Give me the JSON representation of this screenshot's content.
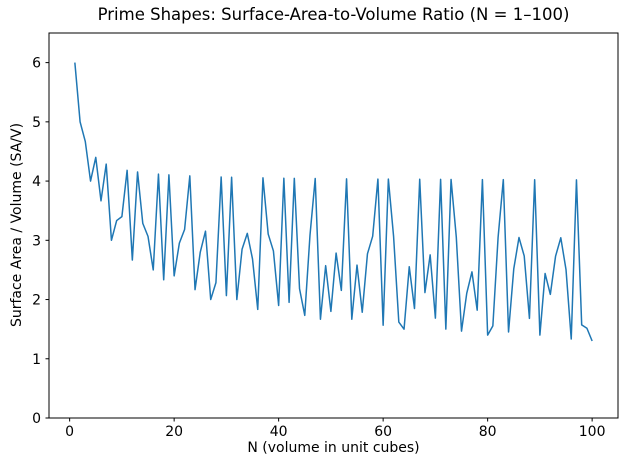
{
  "figure": {
    "background": "#ffffff",
    "text_color": "#000000",
    "spine_color": "#000000"
  },
  "chart_data": {
    "type": "line",
    "title": "Prime Shapes: Surface-Area-to-Volume Ratio (N = 1–100)",
    "xlabel": "N (volume in unit cubes)",
    "ylabel": "Surface Area / Volume (SA/V)",
    "line_color": "#1f77b4",
    "line_width": 1.5,
    "grid": false,
    "legend": "none",
    "xlim": [
      -3.95,
      104.95
    ],
    "ylim": [
      0,
      6.5
    ],
    "xticks": [
      0,
      20,
      40,
      60,
      80,
      100
    ],
    "yticks": [
      0,
      1,
      2,
      3,
      4,
      5,
      6
    ],
    "x": [
      1,
      2,
      3,
      4,
      5,
      6,
      7,
      8,
      9,
      10,
      11,
      12,
      13,
      14,
      15,
      16,
      17,
      18,
      19,
      20,
      21,
      22,
      23,
      24,
      25,
      26,
      27,
      28,
      29,
      30,
      31,
      32,
      33,
      34,
      35,
      36,
      37,
      38,
      39,
      40,
      41,
      42,
      43,
      44,
      45,
      46,
      47,
      48,
      49,
      50,
      51,
      52,
      53,
      54,
      55,
      56,
      57,
      58,
      59,
      60,
      61,
      62,
      63,
      64,
      65,
      66,
      67,
      68,
      69,
      70,
      71,
      72,
      73,
      74,
      75,
      76,
      77,
      78,
      79,
      80,
      81,
      82,
      83,
      84,
      85,
      86,
      87,
      88,
      89,
      90,
      91,
      92,
      93,
      94,
      95,
      96,
      97,
      98,
      99,
      100
    ],
    "y": [
      6.0,
      5.0,
      4.6667,
      4.0,
      4.4,
      3.6667,
      4.2857,
      3.0,
      3.3333,
      3.4,
      4.1818,
      2.6667,
      4.1538,
      3.2857,
      3.0667,
      2.5,
      4.1176,
      2.3333,
      4.1053,
      2.4,
      2.9524,
      3.1818,
      4.087,
      2.1667,
      2.8,
      3.1538,
      2.0,
      2.2857,
      4.069,
      2.0667,
      4.0645,
      2.0,
      2.8485,
      3.1176,
      2.6857,
      1.8333,
      4.0541,
      3.1053,
      2.8205,
      1.9,
      4.0488,
      1.9524,
      4.0465,
      2.1818,
      1.7333,
      3.087,
      4.0426,
      1.6667,
      2.5714,
      1.8,
      2.7843,
      2.1538,
      4.0377,
      1.6667,
      2.5818,
      1.7857,
      2.7719,
      3.069,
      4.0339,
      1.5667,
      4.0328,
      3.0645,
      1.619,
      1.5,
      2.5538,
      1.8485,
      4.0299,
      2.1176,
      2.7536,
      1.6857,
      4.0282,
      1.5,
      4.0274,
      3.0541,
      1.4667,
      2.1053,
      2.4675,
      1.8205,
      4.0253,
      1.4,
      1.5556,
      3.0488,
      4.0241,
      1.4524,
      2.5176,
      3.0465,
      2.7356,
      1.6818,
      4.0225,
      1.4,
      2.4396,
      2.087,
      2.7312,
      3.0426,
      2.5053,
      1.3333,
      4.0206,
      1.5714,
      1.5152,
      1.3
    ]
  }
}
